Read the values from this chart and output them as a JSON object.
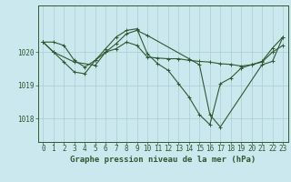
{
  "bg_color": "#cce8ef",
  "grid_color": "#aaccd4",
  "line_color": "#2d5a2d",
  "xlabel": "Graphe pression niveau de la mer (hPa)",
  "xlabel_fontsize": 6.5,
  "tick_fontsize": 5.5,
  "ytick_labels": [
    1018,
    1019,
    1020
  ],
  "ylim": [
    1017.3,
    1021.4
  ],
  "xlim": [
    -0.5,
    23.5
  ],
  "xticks": [
    0,
    1,
    2,
    3,
    4,
    5,
    6,
    7,
    8,
    9,
    10,
    11,
    12,
    13,
    14,
    15,
    16,
    17,
    18,
    19,
    20,
    21,
    22,
    23
  ],
  "series1": [
    1020.3,
    1020.3,
    1020.2,
    1019.75,
    1019.55,
    1019.75,
    1020.0,
    1020.1,
    1020.3,
    1020.2,
    1019.85,
    1019.82,
    1019.8,
    1019.8,
    1019.75,
    1019.72,
    1019.7,
    1019.65,
    1019.63,
    1019.58,
    1019.62,
    1019.7,
    1020.0,
    1020.2
  ],
  "series2": [
    1020.3,
    1020.0,
    1019.7,
    1019.4,
    1019.35,
    1019.75,
    1020.1,
    1020.45,
    1020.65,
    1020.7,
    1019.95,
    1019.65,
    1019.45,
    1019.05,
    1018.65,
    1018.12,
    1017.82,
    1019.05,
    1019.22,
    1019.52,
    1019.62,
    1019.72,
    1020.12,
    1020.45
  ],
  "series3_x": [
    0,
    1,
    3,
    5,
    6,
    7,
    8,
    9,
    10,
    14,
    15,
    16,
    17,
    21,
    22,
    23
  ],
  "series3_y": [
    1020.3,
    1020.0,
    1019.7,
    1019.6,
    1020.0,
    1020.25,
    1020.55,
    1020.65,
    1020.5,
    1019.8,
    1019.62,
    1018.12,
    1017.75,
    1019.62,
    1019.72,
    1020.45
  ]
}
